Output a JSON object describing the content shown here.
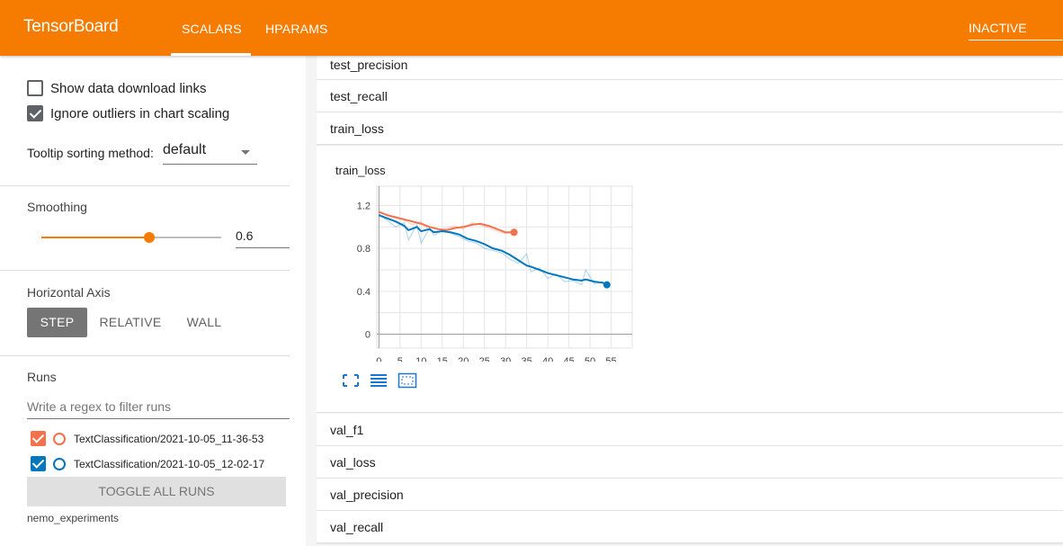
{
  "header": {
    "brand": "TensorBoard",
    "tabs": [
      {
        "label": "SCALARS",
        "active": true
      },
      {
        "label": "HPARAMS",
        "active": false
      }
    ],
    "status_selector": "INACTIVE",
    "accent_color": "#f57c00"
  },
  "sidebar": {
    "show_download_links": {
      "label": "Show data download links",
      "checked": false
    },
    "ignore_outliers": {
      "label": "Ignore outliers in chart scaling",
      "checked": true
    },
    "tooltip_sorting": {
      "label": "Tooltip sorting method:",
      "value": "default"
    },
    "smoothing": {
      "title": "Smoothing",
      "value": "0.6",
      "fraction": 0.6
    },
    "horizontal_axis": {
      "title": "Horizontal Axis",
      "options": [
        {
          "label": "STEP",
          "active": true
        },
        {
          "label": "RELATIVE",
          "active": false
        },
        {
          "label": "WALL",
          "active": false
        }
      ]
    },
    "runs": {
      "title": "Runs",
      "filter_placeholder": "Write a regex to filter runs",
      "items": [
        {
          "name": "TextClassification/2021-10-05_11-36-53",
          "color": "#f4714c",
          "checked": true
        },
        {
          "name": "TextClassification/2021-10-05_12-02-17",
          "color": "#0277bd",
          "checked": true
        }
      ],
      "toggle_label": "TOGGLE ALL RUNS",
      "experiment": "nemo_experiments"
    }
  },
  "main": {
    "cards_above": [
      "test_precision",
      "test_recall",
      "train_loss"
    ],
    "cards_below": [
      "val_f1",
      "val_loss",
      "val_precision",
      "val_recall"
    ],
    "chart_toolbar": [
      "fit-to-data-icon",
      "data-table-icon",
      "zoom-selection-icon"
    ]
  },
  "chart_data": {
    "type": "line",
    "title": "train_loss",
    "xlabel": "",
    "ylabel": "",
    "xlim": [
      -0.5,
      60
    ],
    "ylim": [
      -0.13,
      1.38
    ],
    "x_ticks": [
      "0",
      "5",
      "10",
      "15",
      "20",
      "25",
      "30",
      "35",
      "40",
      "45",
      "50",
      "55"
    ],
    "y_ticks": [
      "0",
      "0.4",
      "0.8",
      "1.2"
    ],
    "grid": true,
    "series": [
      {
        "color": "#f4714c",
        "x": [
          0,
          2,
          4,
          6,
          8,
          10,
          12,
          14,
          16,
          18,
          20,
          22,
          24,
          26,
          28,
          30,
          32
        ],
        "values": [
          1.14,
          1.11,
          1.09,
          1.07,
          1.05,
          1.03,
          1.0,
          0.98,
          0.97,
          0.99,
          1.0,
          1.02,
          1.03,
          1.01,
          0.98,
          0.95,
          0.95
        ],
        "raw": [
          1.15,
          1.1,
          1.08,
          1.06,
          1.02,
          1.05,
          0.97,
          0.95,
          0.99,
          1.01,
          0.98,
          1.04,
          1.02,
          0.99,
          0.96,
          0.94,
          0.95
        ]
      },
      {
        "color": "#0277bd",
        "x": [
          0,
          2,
          4,
          6,
          7,
          9,
          10,
          12,
          13,
          15,
          17,
          19,
          21,
          23,
          25,
          27,
          29,
          31,
          33,
          35,
          36,
          38,
          40,
          42,
          44,
          46,
          48,
          49,
          51,
          53,
          54
        ],
        "values": [
          1.11,
          1.08,
          1.05,
          1.01,
          0.97,
          1.0,
          0.96,
          0.98,
          0.95,
          0.96,
          0.95,
          0.93,
          0.89,
          0.87,
          0.84,
          0.8,
          0.78,
          0.74,
          0.69,
          0.64,
          0.63,
          0.6,
          0.57,
          0.55,
          0.53,
          0.51,
          0.5,
          0.51,
          0.49,
          0.48,
          0.46
        ],
        "raw": [
          1.12,
          1.06,
          1.0,
          1.04,
          0.88,
          1.02,
          0.85,
          0.99,
          0.92,
          0.97,
          0.94,
          0.91,
          0.87,
          0.85,
          0.8,
          0.78,
          0.76,
          0.7,
          0.66,
          0.75,
          0.58,
          0.62,
          0.52,
          0.56,
          0.49,
          0.5,
          0.46,
          0.6,
          0.47,
          0.49,
          0.45
        ]
      }
    ]
  }
}
